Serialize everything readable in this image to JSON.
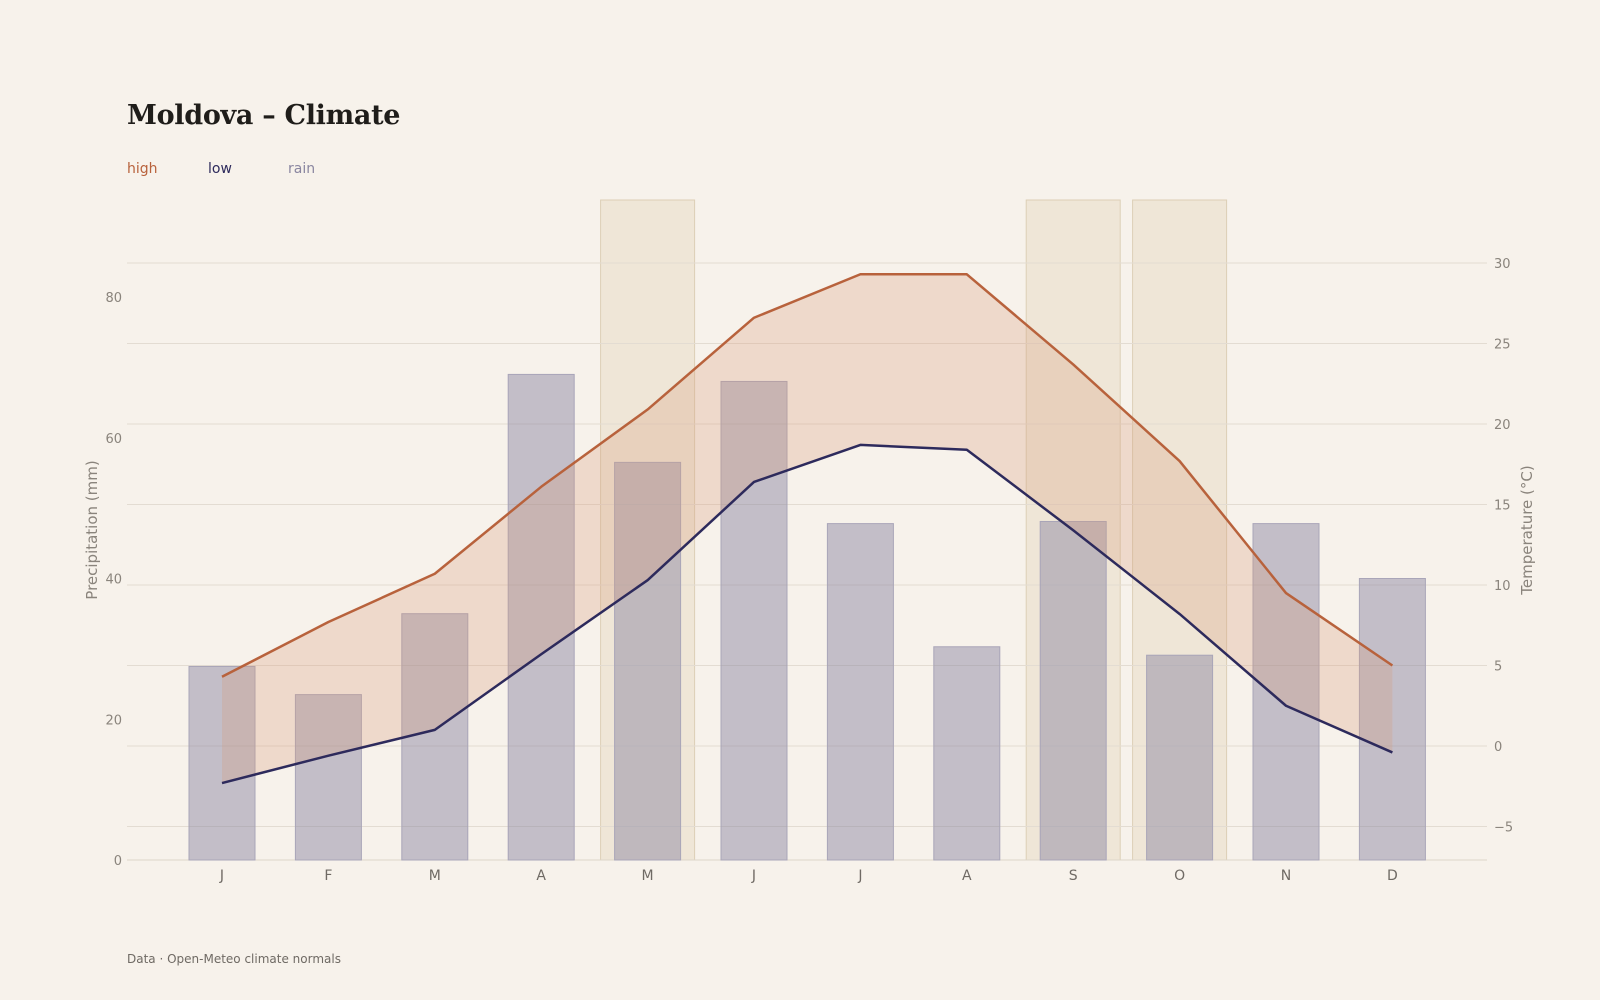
{
  "chart_data": {
    "type": "bar",
    "title": "Moldova – Climate",
    "categories": [
      "J",
      "F",
      "M",
      "A",
      "M",
      "J",
      "J",
      "A",
      "S",
      "O",
      "N",
      "D"
    ],
    "legend": [
      {
        "label": "high",
        "color": "#b8623c"
      },
      {
        "label": "low",
        "color": "#2d2a5c"
      },
      {
        "label": "rain",
        "color": "#8a86a0"
      }
    ],
    "series": [
      {
        "name": "rain",
        "type": "bar",
        "axis": "left",
        "values": [
          27.5,
          23.5,
          35,
          69,
          56.5,
          68,
          47.8,
          30.3,
          48.1,
          29.1,
          47.8,
          40
        ]
      },
      {
        "name": "high",
        "type": "line",
        "axis": "right",
        "values": [
          4.3,
          7.7,
          10.7,
          16.1,
          20.9,
          26.6,
          29.3,
          29.3,
          23.7,
          17.7,
          9.5,
          5
        ]
      },
      {
        "name": "low",
        "type": "line",
        "axis": "right",
        "values": [
          -2.3,
          -0.6,
          1,
          5.7,
          10.3,
          16.4,
          18.7,
          18.4,
          13.4,
          8.2,
          2.5,
          -0.4
        ]
      }
    ],
    "highlighted_months": [
      4,
      8,
      9
    ],
    "ylabel": "Precipitation (mm)",
    "y2label": "Temperature (°C)",
    "yticks": [
      0,
      20,
      40,
      60,
      80
    ],
    "y2ticks": [
      -5,
      0,
      5,
      10,
      15,
      20,
      25,
      30
    ],
    "ylim": [
      0,
      80
    ],
    "y2lim": [
      -7.3,
      30
    ],
    "grid": true
  },
  "legend": {
    "high": "high",
    "low": "low",
    "rain": "rain"
  },
  "footer": "Data · Open-Meteo climate normals"
}
